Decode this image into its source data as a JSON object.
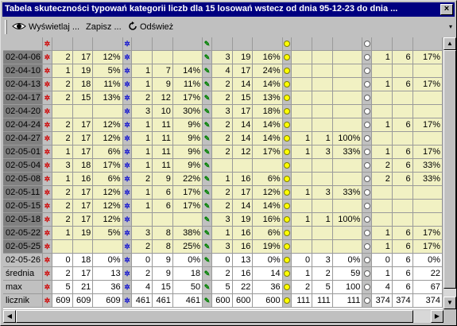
{
  "window": {
    "title": "Tabela skuteczności typowań kategorii liczb dla 15 losowań wstecz od dnia 95-12-23 do dnia ...",
    "close_label": "×"
  },
  "toolbar": {
    "show_label": "Wyświetlaj ...",
    "save_label": "Zapisz ...",
    "refresh_label": "Odśwież",
    "chevron": "▾"
  },
  "colors": {
    "cell_bg": "#f1f1c3",
    "header_bg": "#c0c0c0",
    "selected_date_bg": "#808080"
  },
  "groups": [
    "red",
    "blue",
    "green",
    "yellow",
    "white"
  ],
  "rows": [
    {
      "date": "02-04-06",
      "sel": true,
      "cells": [
        "2",
        "17",
        "12%",
        "",
        "",
        "",
        "3",
        "19",
        "16%",
        "",
        "",
        "",
        "1",
        "6",
        "17%"
      ]
    },
    {
      "date": "02-04-10",
      "sel": true,
      "cells": [
        "1",
        "19",
        "5%",
        "1",
        "7",
        "14%",
        "4",
        "17",
        "24%",
        "",
        "",
        "",
        "",
        "",
        ""
      ]
    },
    {
      "date": "02-04-13",
      "sel": true,
      "cells": [
        "2",
        "18",
        "11%",
        "1",
        "9",
        "11%",
        "2",
        "14",
        "14%",
        "",
        "",
        "",
        "1",
        "6",
        "17%"
      ]
    },
    {
      "date": "02-04-17",
      "sel": true,
      "cells": [
        "2",
        "15",
        "13%",
        "2",
        "12",
        "17%",
        "2",
        "15",
        "13%",
        "",
        "",
        "",
        "",
        "",
        ""
      ]
    },
    {
      "date": "02-04-20",
      "sel": true,
      "cells": [
        "",
        "",
        "",
        "3",
        "10",
        "30%",
        "3",
        "17",
        "18%",
        "",
        "",
        "",
        "",
        "",
        ""
      ]
    },
    {
      "date": "02-04-24",
      "sel": true,
      "cells": [
        "2",
        "17",
        "12%",
        "1",
        "11",
        "9%",
        "2",
        "14",
        "14%",
        "",
        "",
        "",
        "1",
        "6",
        "17%"
      ]
    },
    {
      "date": "02-04-27",
      "sel": true,
      "cells": [
        "2",
        "17",
        "12%",
        "1",
        "11",
        "9%",
        "2",
        "14",
        "14%",
        "1",
        "1",
        "100%",
        "",
        "",
        ""
      ]
    },
    {
      "date": "02-05-01",
      "sel": true,
      "cells": [
        "1",
        "17",
        "6%",
        "1",
        "11",
        "9%",
        "2",
        "12",
        "17%",
        "1",
        "3",
        "33%",
        "1",
        "6",
        "17%"
      ]
    },
    {
      "date": "02-05-04",
      "sel": true,
      "cells": [
        "3",
        "18",
        "17%",
        "1",
        "11",
        "9%",
        "",
        "",
        "",
        "",
        "",
        "",
        "2",
        "6",
        "33%"
      ]
    },
    {
      "date": "02-05-08",
      "sel": true,
      "cells": [
        "1",
        "16",
        "6%",
        "2",
        "9",
        "22%",
        "1",
        "16",
        "6%",
        "",
        "",
        "",
        "2",
        "6",
        "33%"
      ]
    },
    {
      "date": "02-05-11",
      "sel": true,
      "cells": [
        "2",
        "17",
        "12%",
        "1",
        "6",
        "17%",
        "2",
        "17",
        "12%",
        "1",
        "3",
        "33%",
        "",
        "",
        ""
      ]
    },
    {
      "date": "02-05-15",
      "sel": true,
      "cells": [
        "2",
        "17",
        "12%",
        "1",
        "6",
        "17%",
        "2",
        "14",
        "14%",
        "",
        "",
        "",
        "",
        "",
        ""
      ]
    },
    {
      "date": "02-05-18",
      "sel": true,
      "cells": [
        "2",
        "17",
        "12%",
        "",
        "",
        "",
        "3",
        "19",
        "16%",
        "1",
        "1",
        "100%",
        "",
        "",
        ""
      ]
    },
    {
      "date": "02-05-22",
      "sel": true,
      "cells": [
        "1",
        "19",
        "5%",
        "3",
        "8",
        "38%",
        "1",
        "16",
        "6%",
        "",
        "",
        "",
        "1",
        "6",
        "17%"
      ]
    },
    {
      "date": "02-05-25",
      "sel": true,
      "cells": [
        "",
        "",
        "",
        "2",
        "8",
        "25%",
        "3",
        "16",
        "19%",
        "",
        "",
        "",
        "1",
        "6",
        "17%"
      ]
    },
    {
      "date": "02-05-26",
      "sel": false,
      "last": true,
      "cells": [
        "0",
        "18",
        "0%",
        "0",
        "9",
        "0%",
        "0",
        "13",
        "0%",
        "0",
        "3",
        "0%",
        "0",
        "6",
        "0%"
      ]
    }
  ],
  "stats": [
    {
      "label": "średnia",
      "cells": [
        "2",
        "17",
        "13",
        "2",
        "9",
        "18",
        "2",
        "16",
        "14",
        "1",
        "2",
        "59",
        "1",
        "6",
        "22"
      ]
    },
    {
      "label": "max",
      "cells": [
        "5",
        "21",
        "36",
        "4",
        "15",
        "50",
        "5",
        "22",
        "36",
        "2",
        "5",
        "100",
        "4",
        "6",
        "67"
      ]
    },
    {
      "label": "licznik",
      "cells": [
        "609",
        "609",
        "609",
        "461",
        "461",
        "461",
        "600",
        "600",
        "600",
        "111",
        "111",
        "111",
        "374",
        "374",
        "374"
      ]
    }
  ]
}
